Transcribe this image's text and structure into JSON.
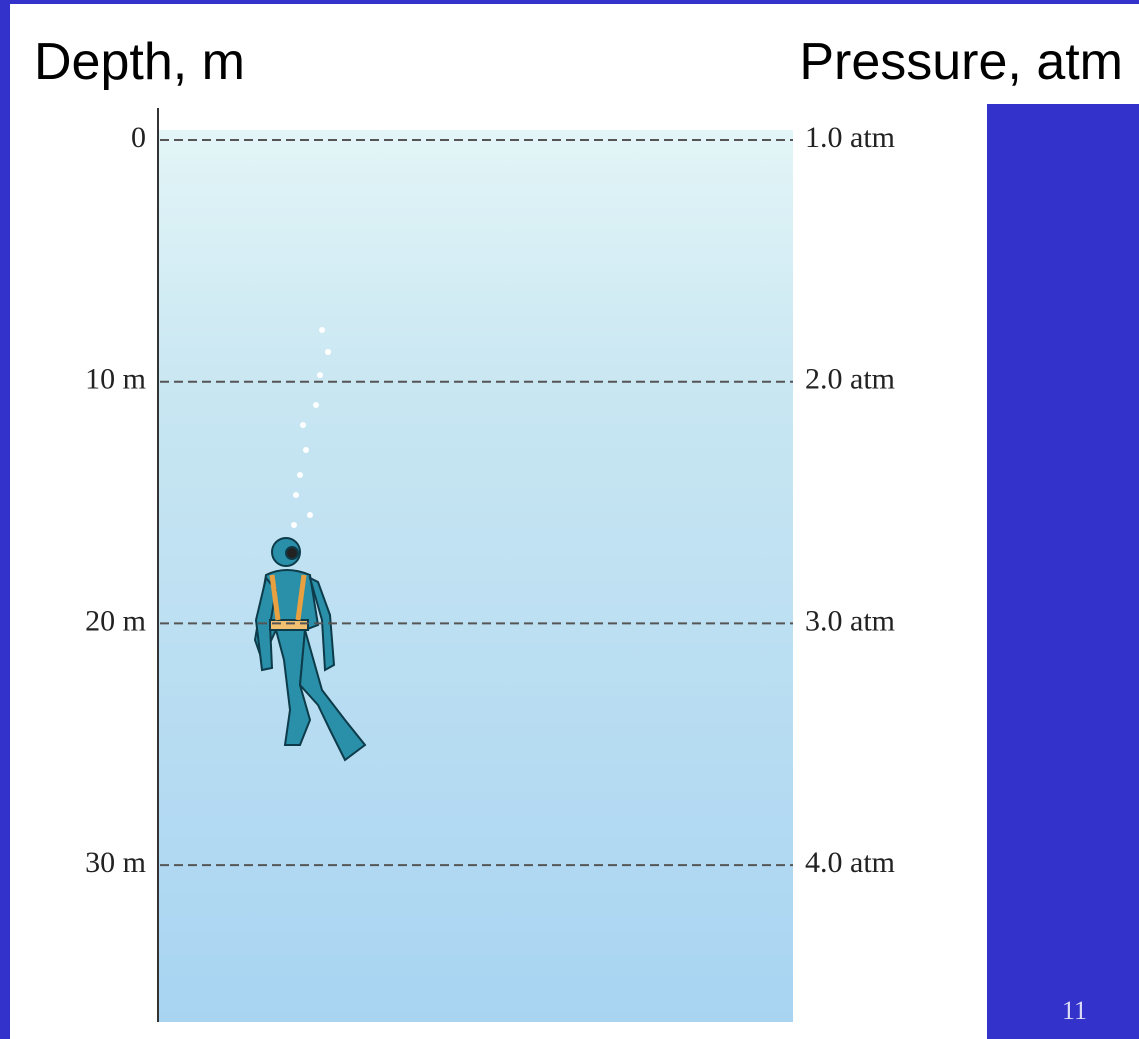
{
  "header": {
    "left": "Depth, m",
    "right": "Pressure, atm"
  },
  "levels": [
    {
      "depth": "0",
      "pressure": "1.0 atm"
    },
    {
      "depth": "10 m",
      "pressure": "2.0 atm"
    },
    {
      "depth": "20 m",
      "pressure": "3.0 atm"
    },
    {
      "depth": "30 m",
      "pressure": "4.0 atm"
    }
  ],
  "slide_number": "11"
}
